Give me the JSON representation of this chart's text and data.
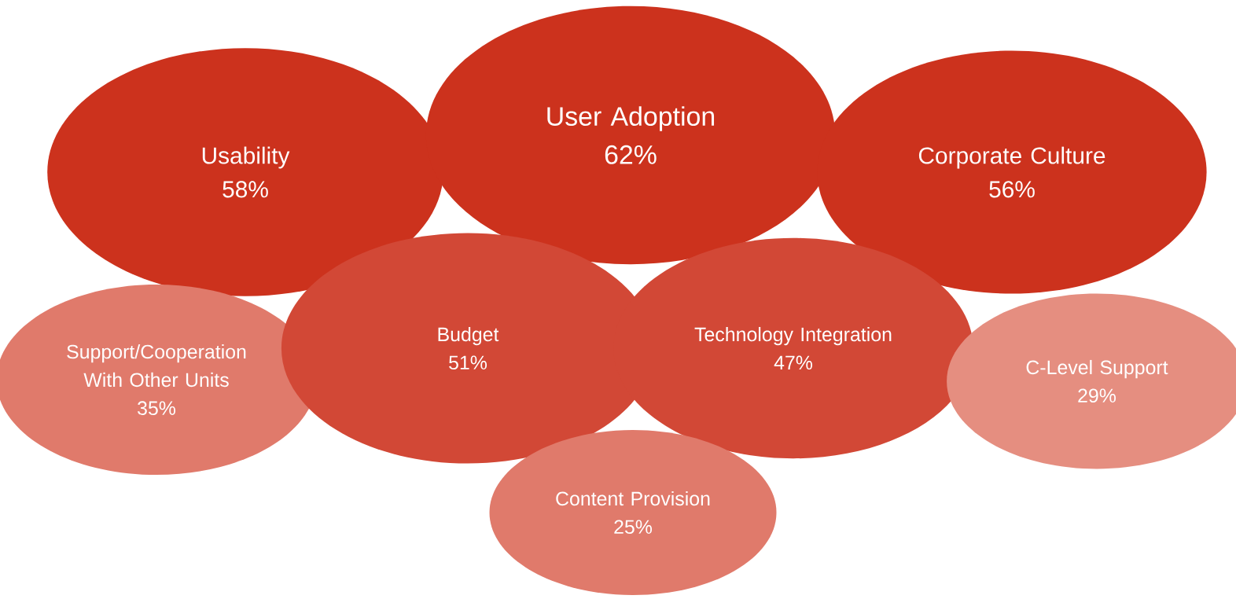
{
  "chart_data": {
    "type": "other",
    "categories": [
      "Usability",
      "User Adoption",
      "Corporate Culture",
      "Support/Cooperation With Other Units",
      "Budget",
      "Technology Integration",
      "C-Level Support",
      "Content Provision"
    ],
    "values": [
      58,
      62,
      56,
      35,
      51,
      47,
      29,
      25
    ],
    "value_labels": [
      "58%",
      "62%",
      "56%",
      "35%",
      "51%",
      "47%",
      "29%",
      "25%"
    ],
    "colors": [
      "#cc321d",
      "#cc321d",
      "#cc321d",
      "#e07a6b",
      "#d24836",
      "#d24836",
      "#e58e80",
      "#e07a6b"
    ]
  }
}
